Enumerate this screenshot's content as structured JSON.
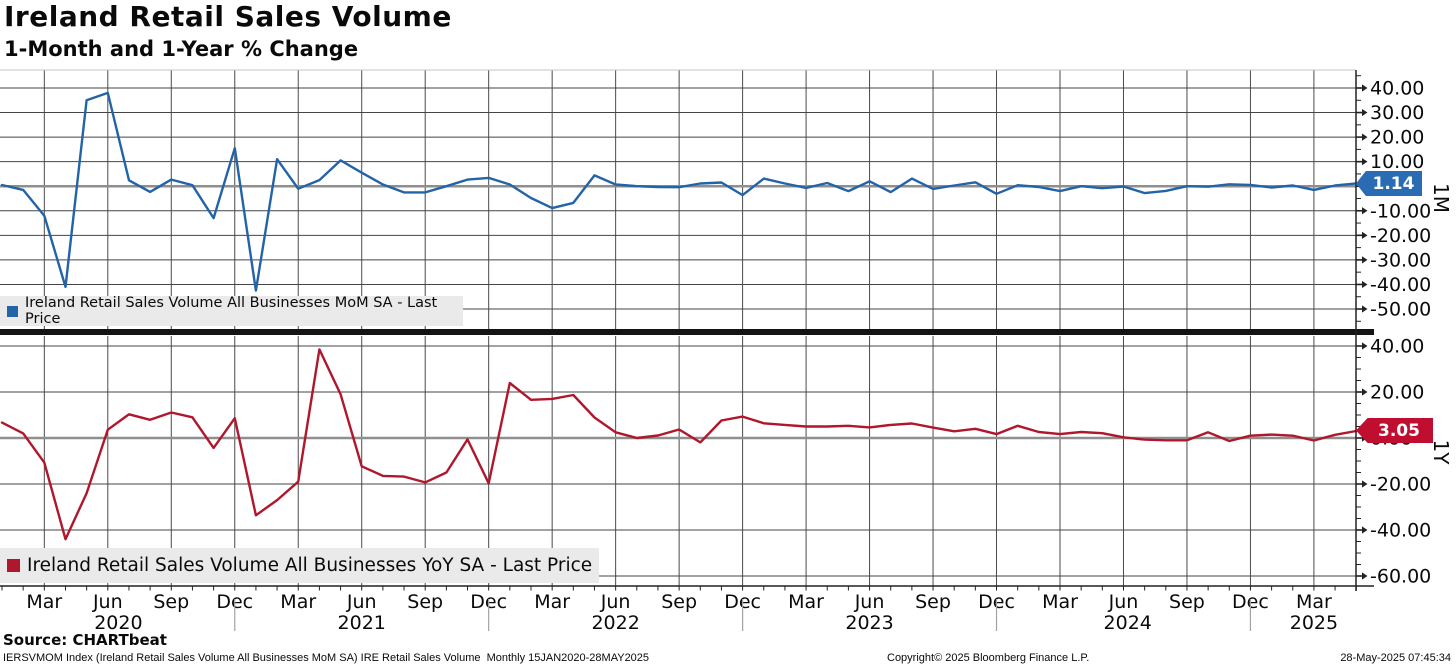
{
  "header": {
    "title": "Ireland Retail Sales Volume",
    "subtitle": "1-Month and 1-Year % Change"
  },
  "panels": {
    "top": {
      "legend": "Ireland Retail Sales Volume All Businesses MoM SA - Last Price",
      "axis_label": "1M",
      "last_price": "1.14",
      "line_color": "#2363a7",
      "badge_color": "#2a6cb3",
      "y_ticks": [
        {
          "v": 40,
          "label": "40.00"
        },
        {
          "v": 30,
          "label": "30.00"
        },
        {
          "v": 20,
          "label": "20.00"
        },
        {
          "v": 10,
          "label": "10.00"
        },
        {
          "v": 0,
          "label": "0.00"
        },
        {
          "v": -10,
          "label": "-10.00"
        },
        {
          "v": -20,
          "label": "-20.00"
        },
        {
          "v": -30,
          "label": "-30.00"
        },
        {
          "v": -40,
          "label": "-40.00"
        },
        {
          "v": -50,
          "label": "-50.00"
        }
      ]
    },
    "bottom": {
      "legend": "Ireland Retail Sales Volume All Businesses YoY SA - Last Price",
      "axis_label": "1Y",
      "last_price": "3.05",
      "line_color": "#b0162c",
      "badge_color": "#c00e31",
      "y_ticks": [
        {
          "v": 40,
          "label": "40.00"
        },
        {
          "v": 20,
          "label": "20.00"
        },
        {
          "v": 0,
          "label": "0.00"
        },
        {
          "v": -20,
          "label": "-20.00"
        },
        {
          "v": -40,
          "label": "-40.00"
        },
        {
          "v": -60,
          "label": "-60.00"
        }
      ]
    }
  },
  "x_axis": {
    "quarters": [
      {
        "m": 2,
        "label": "Mar"
      },
      {
        "m": 5,
        "label": "Jun"
      },
      {
        "m": 8,
        "label": "Sep"
      },
      {
        "m": 11,
        "label": "Dec"
      },
      {
        "m": 14,
        "label": "Mar"
      },
      {
        "m": 17,
        "label": "Jun"
      },
      {
        "m": 20,
        "label": "Sep"
      },
      {
        "m": 23,
        "label": "Dec"
      },
      {
        "m": 26,
        "label": "Mar"
      },
      {
        "m": 29,
        "label": "Jun"
      },
      {
        "m": 32,
        "label": "Sep"
      },
      {
        "m": 35,
        "label": "Dec"
      },
      {
        "m": 38,
        "label": "Mar"
      },
      {
        "m": 41,
        "label": "Jun"
      },
      {
        "m": 44,
        "label": "Sep"
      },
      {
        "m": 47,
        "label": "Dec"
      },
      {
        "m": 50,
        "label": "Mar"
      },
      {
        "m": 53,
        "label": "Jun"
      },
      {
        "m": 56,
        "label": "Sep"
      },
      {
        "m": 59,
        "label": "Dec"
      },
      {
        "m": 62,
        "label": "Mar"
      }
    ],
    "years": [
      {
        "m": 5.5,
        "label": "2020"
      },
      {
        "m": 17,
        "label": "2021"
      },
      {
        "m": 29,
        "label": "2022"
      },
      {
        "m": 41,
        "label": "2023"
      },
      {
        "m": 53.2,
        "label": "2024"
      },
      {
        "m": 62,
        "label": "2025"
      }
    ],
    "year_dividers": [
      11,
      23,
      35,
      47,
      59
    ]
  },
  "footer": {
    "source": "Source: CHARTbeat",
    "descriptor": "IERSVMOM Index (Ireland Retail Sales Volume All Businesses MoM SA) IRE Retail Sales Volume  Monthly 15JAN2020-28MAY2025",
    "copyright": "Copyright© 2025 Bloomberg Finance L.P.",
    "timestamp": "28-May-2025 07:45:34"
  },
  "chart_data": {
    "type": "line",
    "x_months": [
      "2020-01",
      "2020-02",
      "2020-03",
      "2020-04",
      "2020-05",
      "2020-06",
      "2020-07",
      "2020-08",
      "2020-09",
      "2020-10",
      "2020-11",
      "2020-12",
      "2021-01",
      "2021-02",
      "2021-03",
      "2021-04",
      "2021-05",
      "2021-06",
      "2021-07",
      "2021-08",
      "2021-09",
      "2021-10",
      "2021-11",
      "2021-12",
      "2022-01",
      "2022-02",
      "2022-03",
      "2022-04",
      "2022-05",
      "2022-06",
      "2022-07",
      "2022-08",
      "2022-09",
      "2022-10",
      "2022-11",
      "2022-12",
      "2023-01",
      "2023-02",
      "2023-03",
      "2023-04",
      "2023-05",
      "2023-06",
      "2023-07",
      "2023-08",
      "2023-09",
      "2023-10",
      "2023-11",
      "2023-12",
      "2024-01",
      "2024-02",
      "2024-03",
      "2024-04",
      "2024-05",
      "2024-06",
      "2024-07",
      "2024-08",
      "2024-09",
      "2024-10",
      "2024-11",
      "2024-12",
      "2025-01",
      "2025-02",
      "2025-03",
      "2025-04",
      "2025-05"
    ],
    "series": [
      {
        "name": "Ireland Retail Sales Volume All Businesses MoM SA",
        "panel": "1M",
        "last_price": 1.14,
        "values": [
          0.5,
          -1.5,
          -12,
          -41,
          35,
          38,
          2.4,
          -2.3,
          2.7,
          0.4,
          -13,
          15.5,
          -42.5,
          11,
          -1,
          2.5,
          10.5,
          5.5,
          0.7,
          -2.5,
          -2.5,
          0,
          2.7,
          3.4,
          0.7,
          -4.8,
          -8.9,
          -6.8,
          4.4,
          0.7,
          0,
          -0.3,
          -0.4,
          1.1,
          1.5,
          -3.6,
          3.1,
          1.1,
          -0.7,
          1.3,
          -2,
          2,
          -2.4,
          3.1,
          -1.1,
          0.3,
          1.6,
          -3.1,
          0.4,
          -0.3,
          -2,
          0,
          -0.8,
          -0.1,
          -2.8,
          -1.9,
          0,
          -0.2,
          0.8,
          0.5,
          -0.5,
          0.3,
          -1.5,
          0.3,
          1.14
        ]
      },
      {
        "name": "Ireland Retail Sales Volume All Businesses YoY SA",
        "panel": "1Y",
        "last_price": 3.05,
        "values": [
          6.7,
          2,
          -10.7,
          -44,
          -24,
          3.6,
          10.3,
          7.9,
          11.1,
          9,
          -4.3,
          8.6,
          -33.6,
          -27,
          -19,
          38.5,
          19,
          -12.3,
          -16.5,
          -16.8,
          -19.3,
          -15,
          -0.6,
          -19.7,
          23.9,
          16.6,
          17,
          18.7,
          8.9,
          2.5,
          0,
          1.1,
          3.7,
          -1.9,
          7.6,
          9.3,
          6.4,
          5.7,
          5,
          5,
          5.3,
          4.6,
          5.7,
          6.3,
          4.5,
          2.9,
          4,
          1.7,
          5.3,
          2.6,
          1.7,
          2.6,
          2.1,
          0.3,
          -0.7,
          -1,
          -1,
          2.5,
          -1.3,
          1,
          1.5,
          1,
          -1.1,
          1.4,
          3.05
        ]
      }
    ],
    "panel_1M_axis": {
      "label_step": 10,
      "labels_range": [
        40,
        -50
      ],
      "minor_tick_step": 5
    },
    "panel_1Y_axis": {
      "label_step": 20,
      "labels_range": [
        40,
        -60
      ],
      "minor_tick_step": 5
    },
    "grid": true,
    "legend_position": "bottom-left-of-each-panel"
  }
}
